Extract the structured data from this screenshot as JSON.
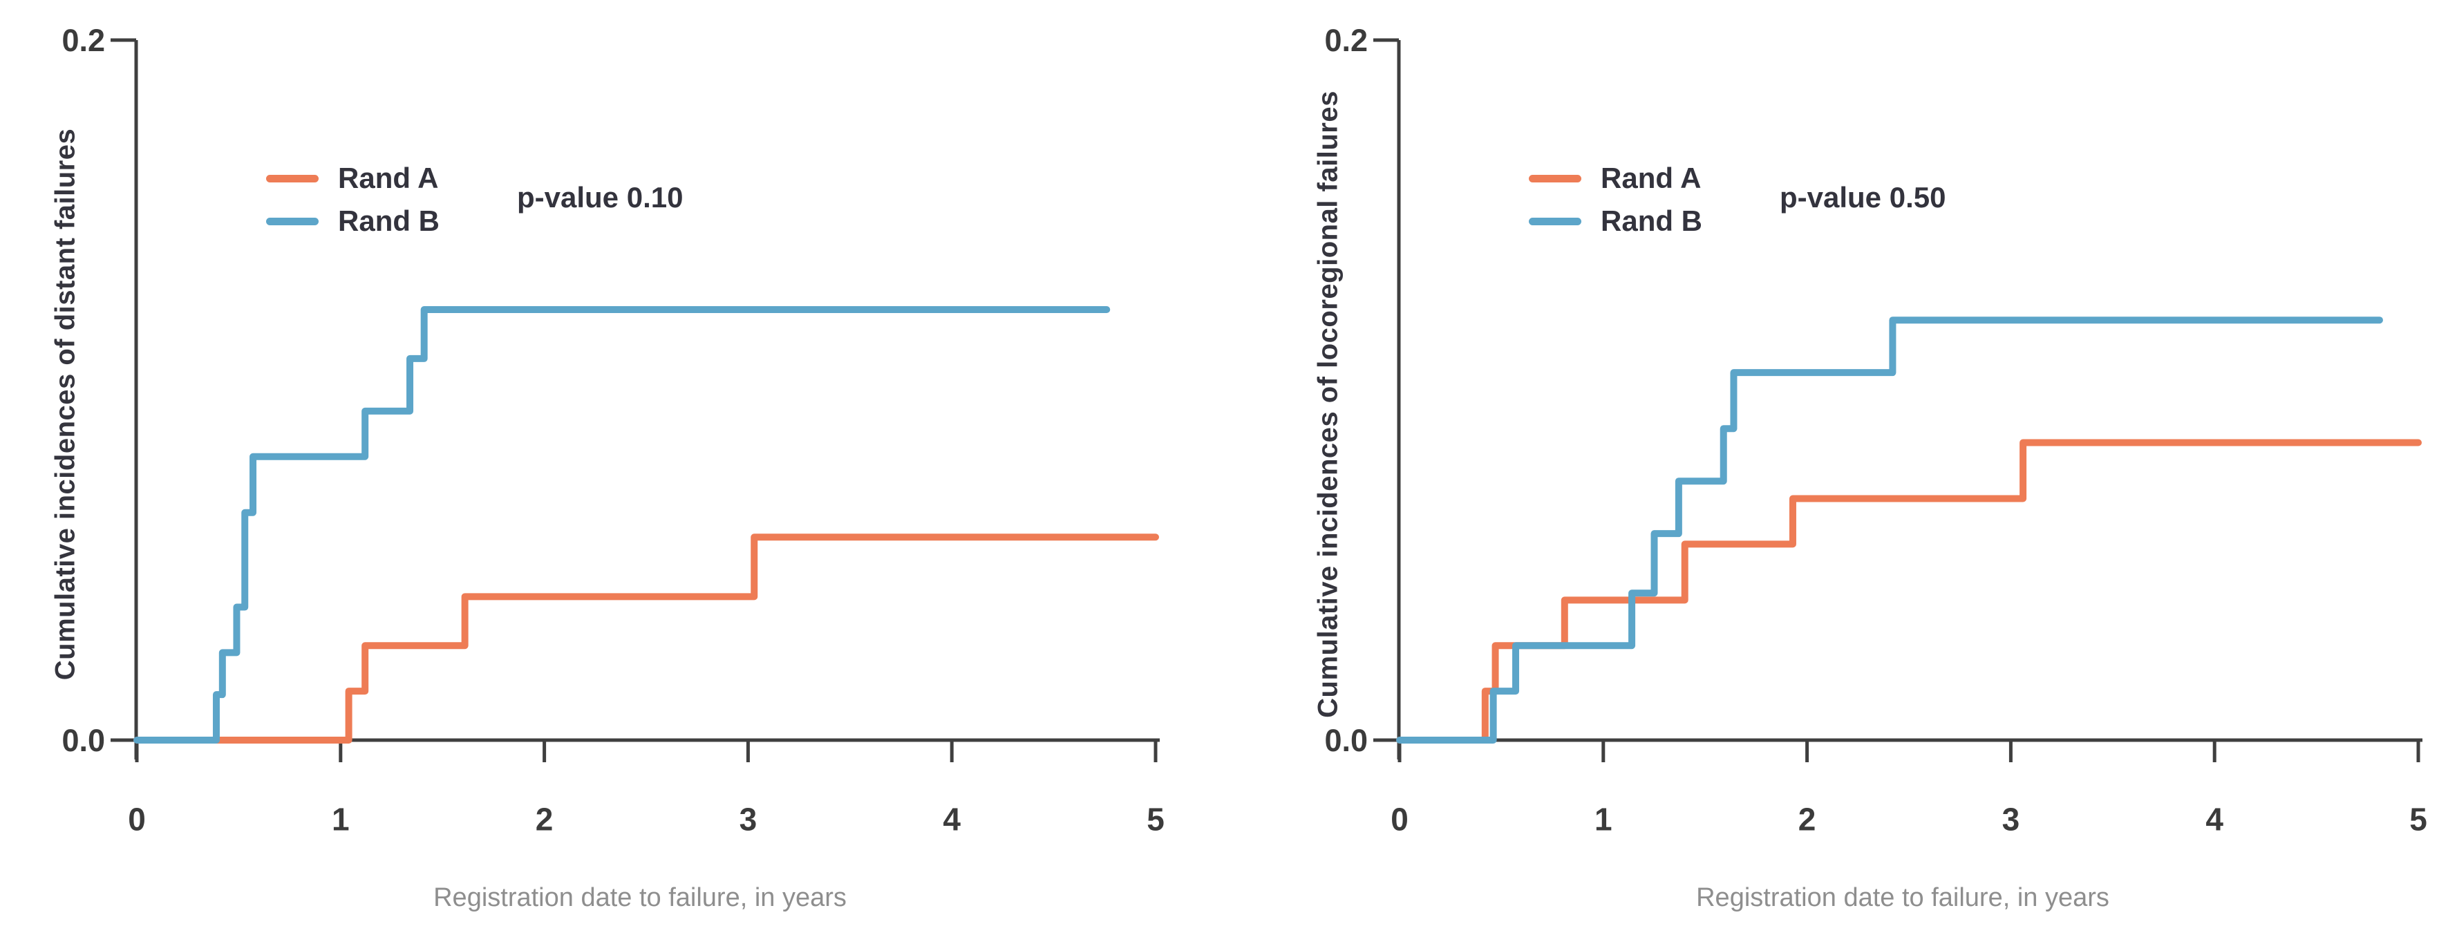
{
  "figure": {
    "background": "#ffffff",
    "colors": {
      "rand_a": "#ee7c55",
      "rand_b": "#5ca5c9",
      "axis": "#3f3f3f",
      "tick_text": "#3b3b3b"
    }
  },
  "chart_data": [
    {
      "type": "line",
      "subtype": "step-function (cumulative incidence curves)",
      "position": "left",
      "ylabel": "Cumulative incidences of distant failures",
      "xlabel": "Registration date to failure, in years",
      "pvalue_text": "p-value 0.10",
      "xlim": [
        0,
        5
      ],
      "ylim": [
        0,
        0.2
      ],
      "xticks": [
        "0",
        "1",
        "2",
        "3",
        "4",
        "5"
      ],
      "yticks": [
        "0.0",
        "0.2"
      ],
      "grid": "off",
      "legend_position": "upper-left-inside",
      "legend": [
        {
          "label": "Rand A",
          "color_key": "rand_a"
        },
        {
          "label": "Rand B",
          "color_key": "rand_b"
        }
      ],
      "series": [
        {
          "name": "Rand A",
          "color_key": "rand_a",
          "start_x": 0,
          "steps": [
            [
              1.04,
              0.014
            ],
            [
              1.12,
              0.027
            ],
            [
              1.61,
              0.041
            ],
            [
              3.03,
              0.058
            ]
          ],
          "end_x": 5.0
        },
        {
          "name": "Rand B",
          "color_key": "rand_b",
          "start_x": 0,
          "steps": [
            [
              0.39,
              0.013
            ],
            [
              0.42,
              0.025
            ],
            [
              0.49,
              0.038
            ],
            [
              0.53,
              0.065
            ],
            [
              0.57,
              0.081
            ],
            [
              1.12,
              0.094
            ],
            [
              1.34,
              0.109
            ],
            [
              1.41,
              0.123
            ]
          ],
          "end_x": 4.76
        }
      ]
    },
    {
      "type": "line",
      "subtype": "step-function (cumulative incidence curves)",
      "position": "right",
      "ylabel": "Cumulative incidences of locoregional failures",
      "xlabel": "Registration date to failure, in years",
      "pvalue_text": "p-value 0.50",
      "xlim": [
        0,
        5
      ],
      "ylim": [
        0,
        0.2
      ],
      "xticks": [
        "0",
        "1",
        "2",
        "3",
        "4",
        "5"
      ],
      "yticks": [
        "0.0",
        "0.2"
      ],
      "grid": "off",
      "legend_position": "upper-left-inside",
      "legend": [
        {
          "label": "Rand A",
          "color_key": "rand_a"
        },
        {
          "label": "Rand B",
          "color_key": "rand_b"
        }
      ],
      "series": [
        {
          "name": "Rand A",
          "color_key": "rand_a",
          "start_x": 0,
          "steps": [
            [
              0.42,
              0.014
            ],
            [
              0.47,
              0.027
            ],
            [
              0.81,
              0.04
            ],
            [
              1.4,
              0.056
            ],
            [
              1.93,
              0.069
            ],
            [
              3.06,
              0.085
            ]
          ],
          "end_x": 5.0
        },
        {
          "name": "Rand B",
          "color_key": "rand_b",
          "start_x": 0,
          "steps": [
            [
              0.46,
              0.014
            ],
            [
              0.57,
              0.027
            ],
            [
              1.14,
              0.042
            ],
            [
              1.25,
              0.059
            ],
            [
              1.37,
              0.074
            ],
            [
              1.59,
              0.089
            ],
            [
              1.64,
              0.105
            ],
            [
              2.42,
              0.12
            ]
          ],
          "end_x": 4.81
        }
      ]
    }
  ]
}
